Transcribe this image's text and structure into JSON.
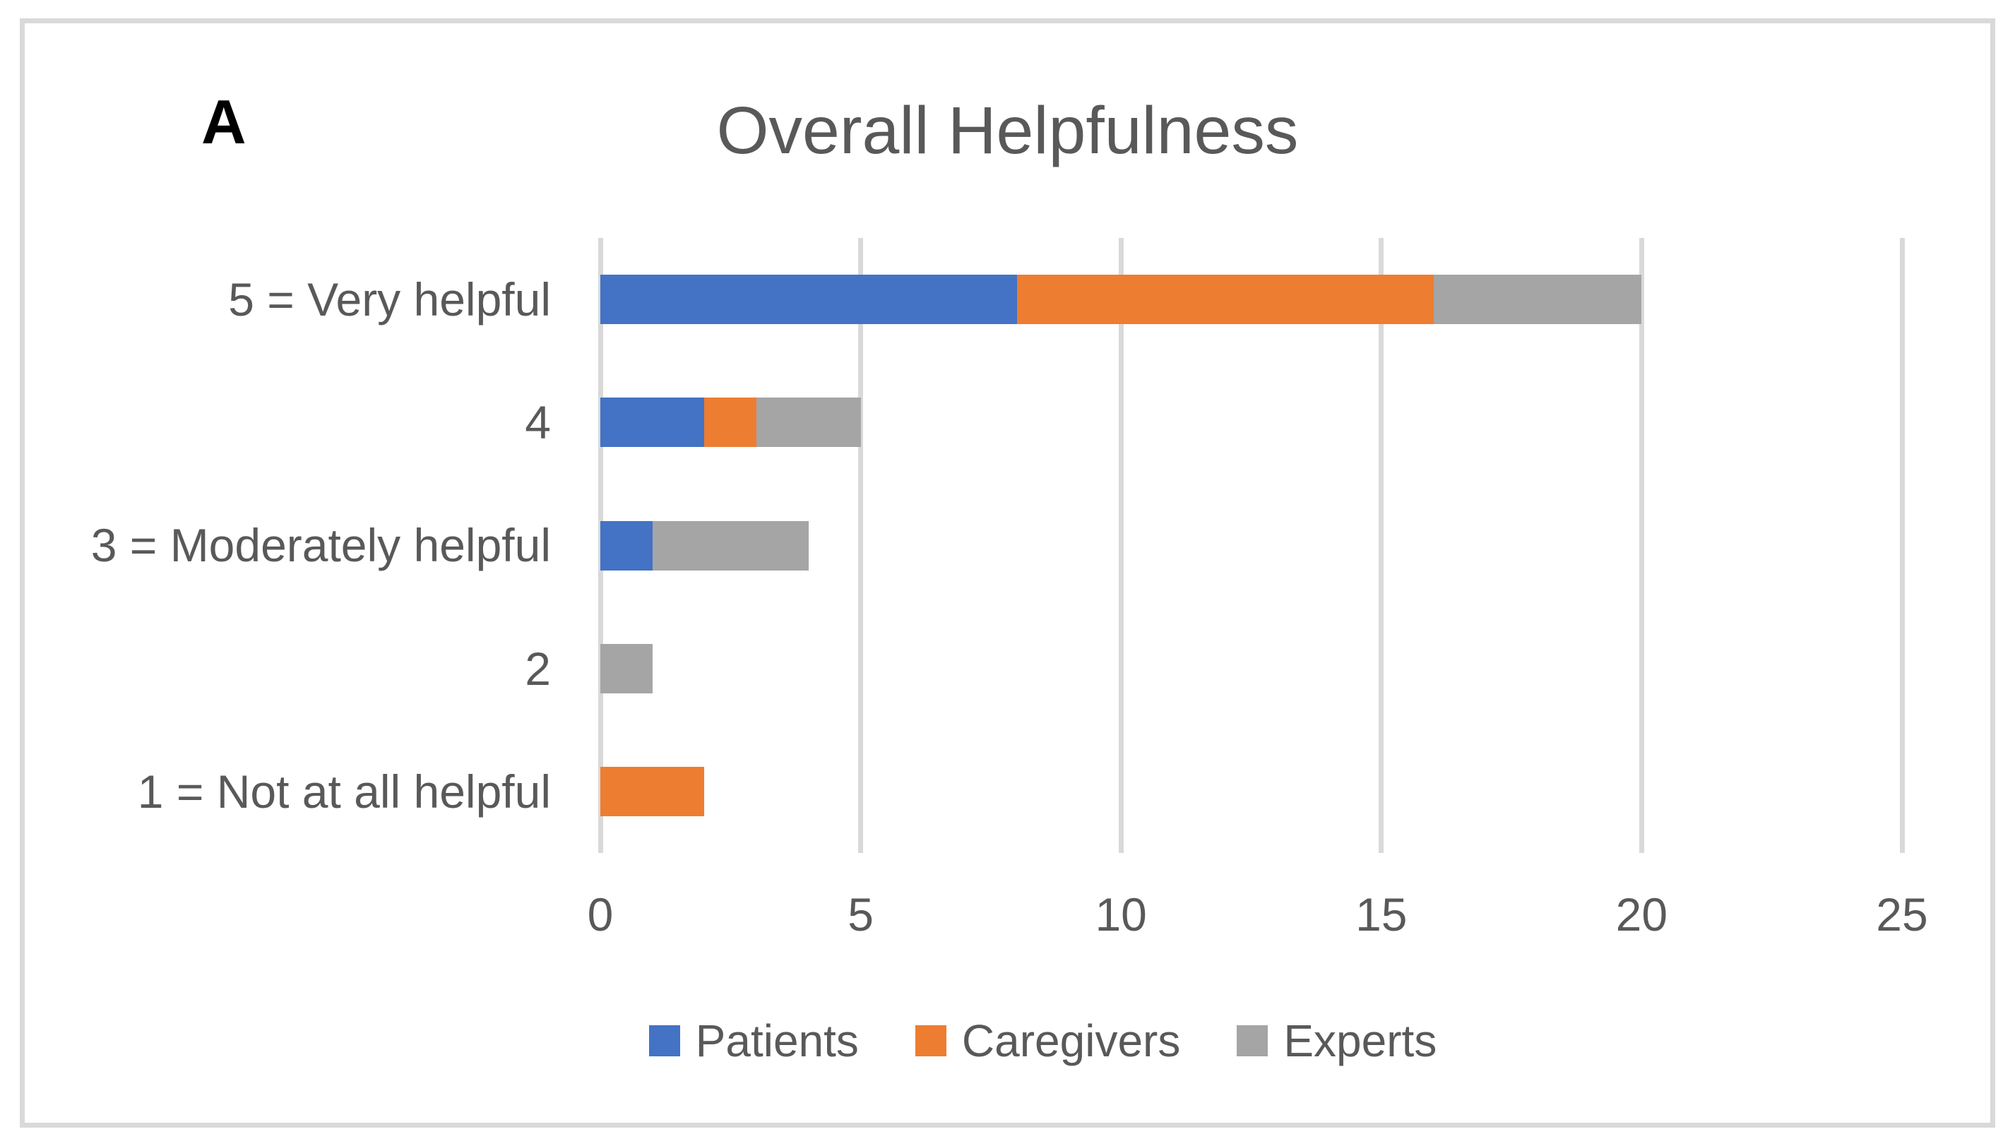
{
  "panel_label": "A",
  "title": "Overall Helpfulness",
  "colors": {
    "patients": "#4472C4",
    "caregivers": "#ED7D31",
    "experts": "#A5A5A5",
    "text": "#595959",
    "grid": "#D9D9D9",
    "panel_label": "#000000"
  },
  "chart_data": {
    "type": "bar",
    "orientation": "horizontal",
    "stacked": true,
    "title": "Overall Helpfulness",
    "categories": [
      "5 = Very helpful",
      "4",
      "3 = Moderately helpful",
      "2",
      "1 = Not at all helpful"
    ],
    "series": [
      {
        "name": "Patients",
        "color": "#4472C4",
        "values": [
          8,
          2,
          1,
          0,
          0
        ]
      },
      {
        "name": "Caregivers",
        "color": "#ED7D31",
        "values": [
          8,
          1,
          0,
          0,
          2
        ]
      },
      {
        "name": "Experts",
        "color": "#A5A5A5",
        "values": [
          4,
          2,
          3,
          1,
          0
        ]
      }
    ],
    "totals": [
      20,
      5,
      4,
      1,
      2
    ],
    "xlabel": "",
    "ylabel": "",
    "xlim": [
      0,
      25
    ],
    "xticks": [
      0,
      5,
      10,
      15,
      20,
      25
    ],
    "grid": "vertical",
    "legend_position": "bottom",
    "legend": [
      "Patients",
      "Caregivers",
      "Experts"
    ]
  }
}
